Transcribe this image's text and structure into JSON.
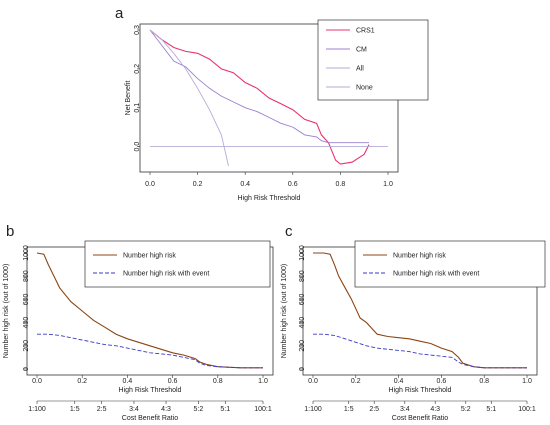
{
  "chart_data": [
    {
      "panel": "a",
      "type": "line",
      "xlabel": "High Risk Threshold",
      "ylabel": "Net Benefit",
      "xlim": [
        0,
        1
      ],
      "ylim": [
        -0.05,
        0.3
      ],
      "xticks": [
        "0.0",
        "0.2",
        "0.4",
        "0.6",
        "0.8",
        "1.0"
      ],
      "yticks": [
        "0.0",
        "0.1",
        "0.2",
        "0.3"
      ],
      "legend_position": "top-right",
      "series": [
        {
          "name": "CRS1",
          "color": "#e8336e",
          "x": [
            0.0,
            0.05,
            0.1,
            0.15,
            0.2,
            0.25,
            0.3,
            0.35,
            0.4,
            0.45,
            0.5,
            0.55,
            0.6,
            0.65,
            0.7,
            0.72,
            0.75,
            0.78,
            0.8,
            0.85,
            0.9,
            0.92
          ],
          "y": [
            0.3,
            0.275,
            0.255,
            0.245,
            0.24,
            0.225,
            0.2,
            0.19,
            0.165,
            0.15,
            0.125,
            0.11,
            0.095,
            0.07,
            0.06,
            0.03,
            0.01,
            -0.035,
            -0.045,
            -0.04,
            -0.02,
            0.005
          ]
        },
        {
          "name": "CM",
          "color": "#9b7fd0",
          "x": [
            0.0,
            0.05,
            0.1,
            0.15,
            0.2,
            0.25,
            0.3,
            0.35,
            0.4,
            0.45,
            0.5,
            0.55,
            0.6,
            0.65,
            0.7,
            0.72,
            0.75,
            0.8,
            0.85,
            0.9,
            0.92
          ],
          "y": [
            0.3,
            0.26,
            0.22,
            0.205,
            0.175,
            0.15,
            0.13,
            0.115,
            0.1,
            0.09,
            0.075,
            0.06,
            0.05,
            0.03,
            0.025,
            0.015,
            0.01,
            0.01,
            0.01,
            0.01,
            0.01
          ]
        },
        {
          "name": "All",
          "color": "#b6acd6",
          "x": [
            0.0,
            0.05,
            0.1,
            0.15,
            0.2,
            0.25,
            0.3,
            0.33
          ],
          "y": [
            0.3,
            0.275,
            0.24,
            0.2,
            0.15,
            0.095,
            0.03,
            -0.05
          ]
        },
        {
          "name": "None",
          "color": "#b6acd6",
          "x": [
            0.0,
            1.0
          ],
          "y": [
            0.0,
            0.0
          ]
        }
      ]
    },
    {
      "panel": "b",
      "type": "line",
      "xlabel": "High Risk Threshold",
      "ylabel": "Number high risk (out of 1000)",
      "xlim": [
        0,
        1
      ],
      "ylim": [
        0,
        1000
      ],
      "xticks": [
        "0.0",
        "0.2",
        "0.4",
        "0.6",
        "0.8",
        "1.0"
      ],
      "yticks": [
        "0",
        "200",
        "400",
        "600",
        "800",
        "1000"
      ],
      "x2label": "Cost Benefit Ratio",
      "x2ticks": [
        "1:100",
        "1:5",
        "2:5",
        "3:4",
        "4:3",
        "5:2",
        "5:1",
        "100:1"
      ],
      "x2tick_positions": [
        0.0,
        0.167,
        0.286,
        0.429,
        0.571,
        0.714,
        0.833,
        1.0
      ],
      "legend_position": "top",
      "series": [
        {
          "name": "Number high risk",
          "color": "#8b4513",
          "x": [
            0.0,
            0.03,
            0.05,
            0.08,
            0.1,
            0.15,
            0.2,
            0.25,
            0.3,
            0.35,
            0.4,
            0.45,
            0.5,
            0.55,
            0.6,
            0.65,
            0.7,
            0.72,
            0.75,
            0.8,
            0.9,
            1.0
          ],
          "y": [
            1000,
            990,
            900,
            780,
            700,
            580,
            500,
            420,
            360,
            300,
            260,
            230,
            200,
            170,
            140,
            120,
            90,
            60,
            40,
            20,
            10,
            10
          ]
        },
        {
          "name": "Number high risk with event",
          "color": "#3a3ac8",
          "x": [
            0.0,
            0.05,
            0.1,
            0.15,
            0.2,
            0.25,
            0.3,
            0.35,
            0.4,
            0.45,
            0.5,
            0.55,
            0.6,
            0.65,
            0.7,
            0.72,
            0.75,
            0.8,
            0.9,
            1.0
          ],
          "y": [
            300,
            300,
            290,
            270,
            250,
            230,
            210,
            200,
            180,
            160,
            140,
            130,
            120,
            100,
            80,
            50,
            30,
            20,
            10,
            10
          ]
        }
      ]
    },
    {
      "panel": "c",
      "type": "line",
      "xlabel": "High Risk Threshold",
      "ylabel": "Number high risk (out of 1000)",
      "xlim": [
        0,
        1
      ],
      "ylim": [
        0,
        1000
      ],
      "xticks": [
        "0.0",
        "0.2",
        "0.4",
        "0.6",
        "0.8",
        "1.0"
      ],
      "yticks": [
        "0",
        "200",
        "400",
        "600",
        "800",
        "1000"
      ],
      "x2label": "Cost Benefit Ratio",
      "x2ticks": [
        "1:100",
        "1:5",
        "2:5",
        "3:4",
        "4:3",
        "5:2",
        "5:1",
        "100:1"
      ],
      "x2tick_positions": [
        0.0,
        0.167,
        0.286,
        0.429,
        0.571,
        0.714,
        0.833,
        1.0
      ],
      "legend_position": "top",
      "series": [
        {
          "name": "Number high risk",
          "color": "#8b4513",
          "x": [
            0.0,
            0.05,
            0.08,
            0.1,
            0.12,
            0.15,
            0.18,
            0.2,
            0.22,
            0.25,
            0.28,
            0.3,
            0.35,
            0.4,
            0.45,
            0.5,
            0.55,
            0.6,
            0.65,
            0.68,
            0.7,
            0.75,
            0.8,
            0.9,
            1.0
          ],
          "y": [
            1000,
            1000,
            990,
            900,
            800,
            700,
            600,
            520,
            440,
            400,
            340,
            300,
            280,
            270,
            260,
            240,
            220,
            180,
            150,
            100,
            50,
            20,
            10,
            10,
            10
          ]
        },
        {
          "name": "Number high risk with event",
          "color": "#3a3ac8",
          "x": [
            0.0,
            0.05,
            0.1,
            0.15,
            0.2,
            0.25,
            0.3,
            0.35,
            0.4,
            0.45,
            0.5,
            0.55,
            0.6,
            0.65,
            0.68,
            0.7,
            0.75,
            0.8,
            0.9,
            1.0
          ],
          "y": [
            300,
            300,
            290,
            260,
            230,
            200,
            180,
            170,
            160,
            150,
            130,
            120,
            110,
            100,
            60,
            40,
            20,
            10,
            10,
            10
          ]
        }
      ]
    }
  ]
}
